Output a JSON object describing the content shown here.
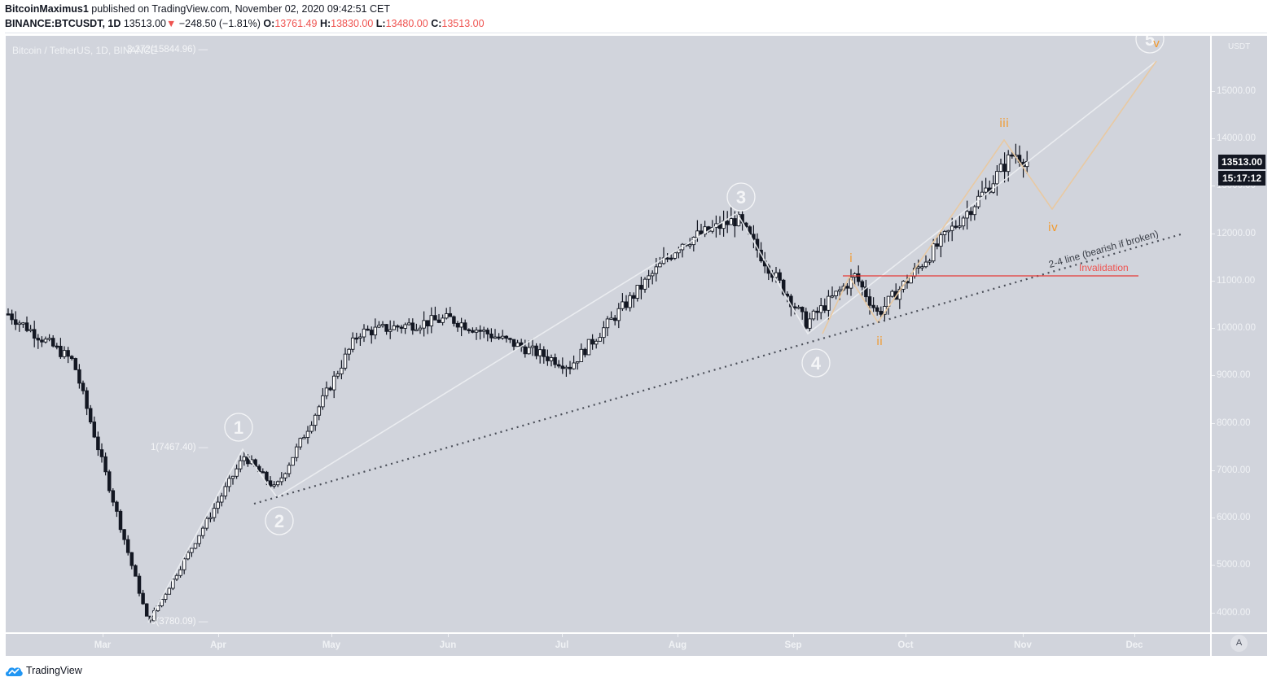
{
  "header": {
    "author": "BitcoinMaximus1",
    "published_text": "published on TradingView.com, November 02, 2020 09:42:51 CET",
    "symbol": "BINANCE:BTCUSDT, 1D",
    "last": "13513.00",
    "change_arrow": "▼",
    "change": "−248.50 (−1.81%)",
    "o_label": "O:",
    "o": "13761.49",
    "h_label": "H:",
    "h": "13830.00",
    "l_label": "L:",
    "l": "13480.00",
    "c_label": "C:",
    "c": "13513.00"
  },
  "pane": {
    "symbol_title": "Bitcoin / TetherUS, 1D, BINANCE",
    "currency": "USDT",
    "last_price_tag": "13513.00",
    "countdown_tag": "15:17:12",
    "auto_button": "A"
  },
  "annotations": {
    "fib_top": "3.272(15844.96) —",
    "fib_1": "1(7467.40) —",
    "fib_0": "0(3780.09) —",
    "waves_major": [
      "1",
      "2",
      "3",
      "4",
      "5"
    ],
    "waves_minor": [
      "i",
      "ii",
      "iii",
      "iv",
      "v"
    ],
    "invalidation": "Invalidation",
    "trendline_label": "2-4 line (bearish if broken)"
  },
  "footer": {
    "brand": "TradingView"
  },
  "chart_data": {
    "type": "candlestick",
    "title": "Bitcoin / TetherUS, 1D, BINANCE",
    "xlabel": "",
    "ylabel": "USDT",
    "x_ticks": [
      "Mar",
      "Apr",
      "May",
      "Jun",
      "Jul",
      "Aug",
      "Sep",
      "Oct",
      "Nov",
      "Dec"
    ],
    "y_ticks": [
      4000,
      5000,
      6000,
      7000,
      8000,
      9000,
      10000,
      11000,
      12000,
      13000,
      14000,
      15000
    ],
    "ylim": [
      3700,
      16000
    ],
    "grid": false,
    "last_price": 13513.0,
    "ohlc_last": {
      "open": 13761.49,
      "high": 13830.0,
      "low": 13480.0,
      "close": 13513.0
    },
    "approx_monthly_path": [
      {
        "date": "2020-02-10",
        "price": 10300
      },
      {
        "date": "2020-02-25",
        "price": 9300
      },
      {
        "date": "2020-03-12",
        "price": 3780
      },
      {
        "date": "2020-04-08",
        "price": 7300
      },
      {
        "date": "2020-04-15",
        "price": 6600
      },
      {
        "date": "2020-05-08",
        "price": 9900
      },
      {
        "date": "2020-06-01",
        "price": 10200
      },
      {
        "date": "2020-07-15",
        "price": 9200
      },
      {
        "date": "2020-08-02",
        "price": 11800
      },
      {
        "date": "2020-08-17",
        "price": 12300
      },
      {
        "date": "2020-09-05",
        "price": 10100
      },
      {
        "date": "2020-09-18",
        "price": 11100
      },
      {
        "date": "2020-09-23",
        "price": 10300
      },
      {
        "date": "2020-10-21",
        "price": 12900
      },
      {
        "date": "2020-10-28",
        "price": 13700
      },
      {
        "date": "2020-11-02",
        "price": 13513
      }
    ],
    "fibonacci": [
      {
        "level": "0",
        "price": 3780.09
      },
      {
        "level": "1",
        "price": 7467.4
      },
      {
        "level": "3.272",
        "price": 15844.96
      }
    ],
    "horizontal_lines": [
      {
        "label": "Invalidation",
        "price": 11100,
        "color": "#e53935"
      }
    ],
    "trendlines": [
      {
        "label": "2-4 line (bearish if broken)",
        "style": "dotted",
        "from_price": 6300,
        "to_price": 12000
      }
    ],
    "elliott_waves": {
      "major": [
        {
          "label": "1",
          "price": 7467
        },
        {
          "label": "2",
          "price": 6500
        },
        {
          "label": "3",
          "price": 12300
        },
        {
          "label": "4",
          "price": 9850
        },
        {
          "label": "5",
          "price": 15800,
          "projected": true
        }
      ],
      "minor": [
        {
          "label": "i",
          "price": 11100
        },
        {
          "label": "ii",
          "price": 10150
        },
        {
          "label": "iii",
          "price": 14000
        },
        {
          "label": "iv",
          "price": 12500,
          "projected": true
        },
        {
          "label": "v",
          "price": 15700,
          "projected": true
        }
      ]
    }
  }
}
